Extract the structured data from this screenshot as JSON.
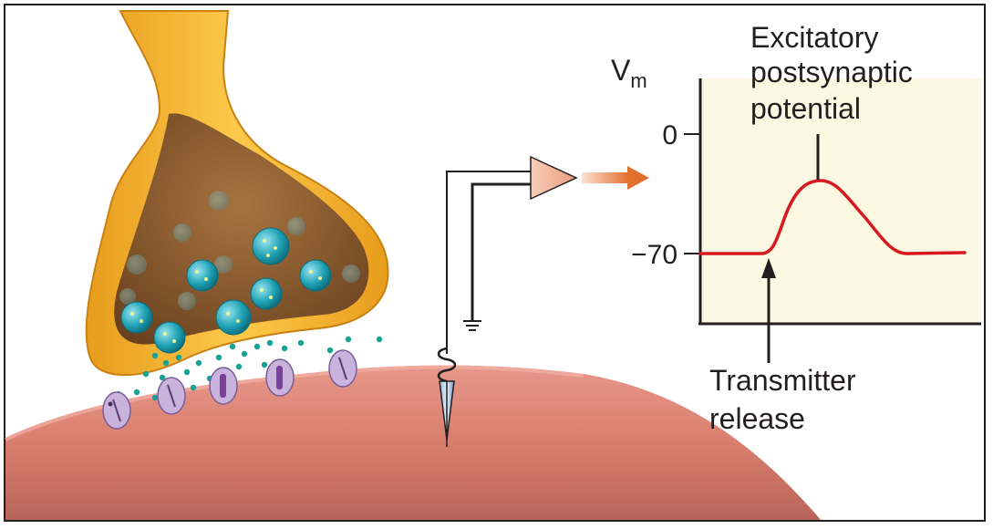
{
  "graph": {
    "y_axis_label": "V",
    "y_axis_subscript": "m",
    "ticks": [
      {
        "value": 0,
        "label": "0"
      },
      {
        "value": -70,
        "label": "−70"
      }
    ],
    "trace_color": "#d71920",
    "background_color": "#fdf8e1"
  },
  "annotations": {
    "epsp_line1": "Excitatory",
    "epsp_line2": "postsynaptic",
    "epsp_line3": "potential",
    "release_line1": "Transmitter",
    "release_line2": "release"
  },
  "colors": {
    "terminal_outer": "#f5b82e",
    "terminal_inner": "#8a5a2b",
    "vesicle": "#1fa3b5",
    "receptor": "#c9b3dd",
    "postsynaptic_cell": "#e0867a",
    "amplifier": "#f2b69a",
    "signal_arrow": "#e36f2c"
  }
}
